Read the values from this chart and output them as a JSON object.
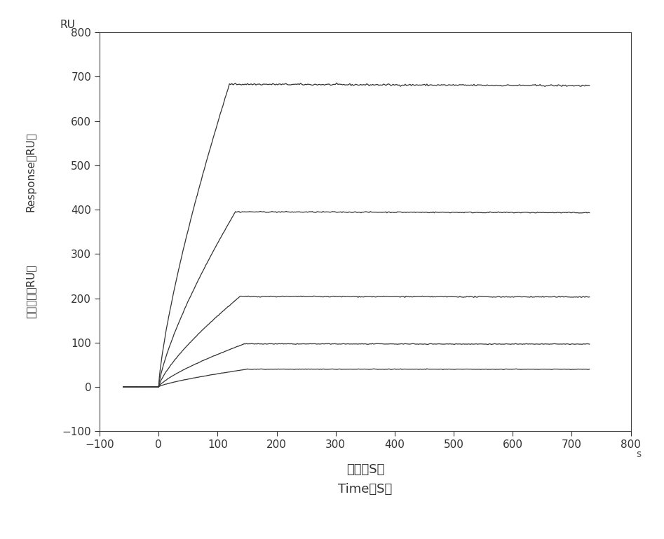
{
  "xlabel_chinese": "时间（S）",
  "xlabel_english": "Time（S）",
  "ylabel_english": "Response（RU）",
  "ylabel_chinese": "反应单位（RU）",
  "ylabel_top": "RU",
  "xlabel_s": "s",
  "xlim": [
    -100,
    800
  ],
  "ylim": [
    -100,
    800
  ],
  "xticks": [
    -100,
    0,
    100,
    200,
    300,
    400,
    500,
    600,
    700,
    800
  ],
  "yticks": [
    -100,
    0,
    100,
    200,
    300,
    400,
    500,
    600,
    700,
    800
  ],
  "background_color": "#ffffff",
  "line_color_hex": "#333333",
  "curves": [
    {
      "flat_level": 683,
      "rise_end_x": 120,
      "flat_end_x": 730,
      "noise_amp": 2.5
    },
    {
      "flat_level": 395,
      "rise_end_x": 130,
      "flat_end_x": 730,
      "noise_amp": 1.5
    },
    {
      "flat_level": 204,
      "rise_end_x": 138,
      "flat_end_x": 730,
      "noise_amp": 1.5
    },
    {
      "flat_level": 97,
      "rise_end_x": 145,
      "flat_end_x": 730,
      "noise_amp": 1.0
    },
    {
      "flat_level": 40,
      "rise_end_x": 150,
      "flat_end_x": 730,
      "noise_amp": 0.8
    }
  ],
  "pre_x": -60
}
